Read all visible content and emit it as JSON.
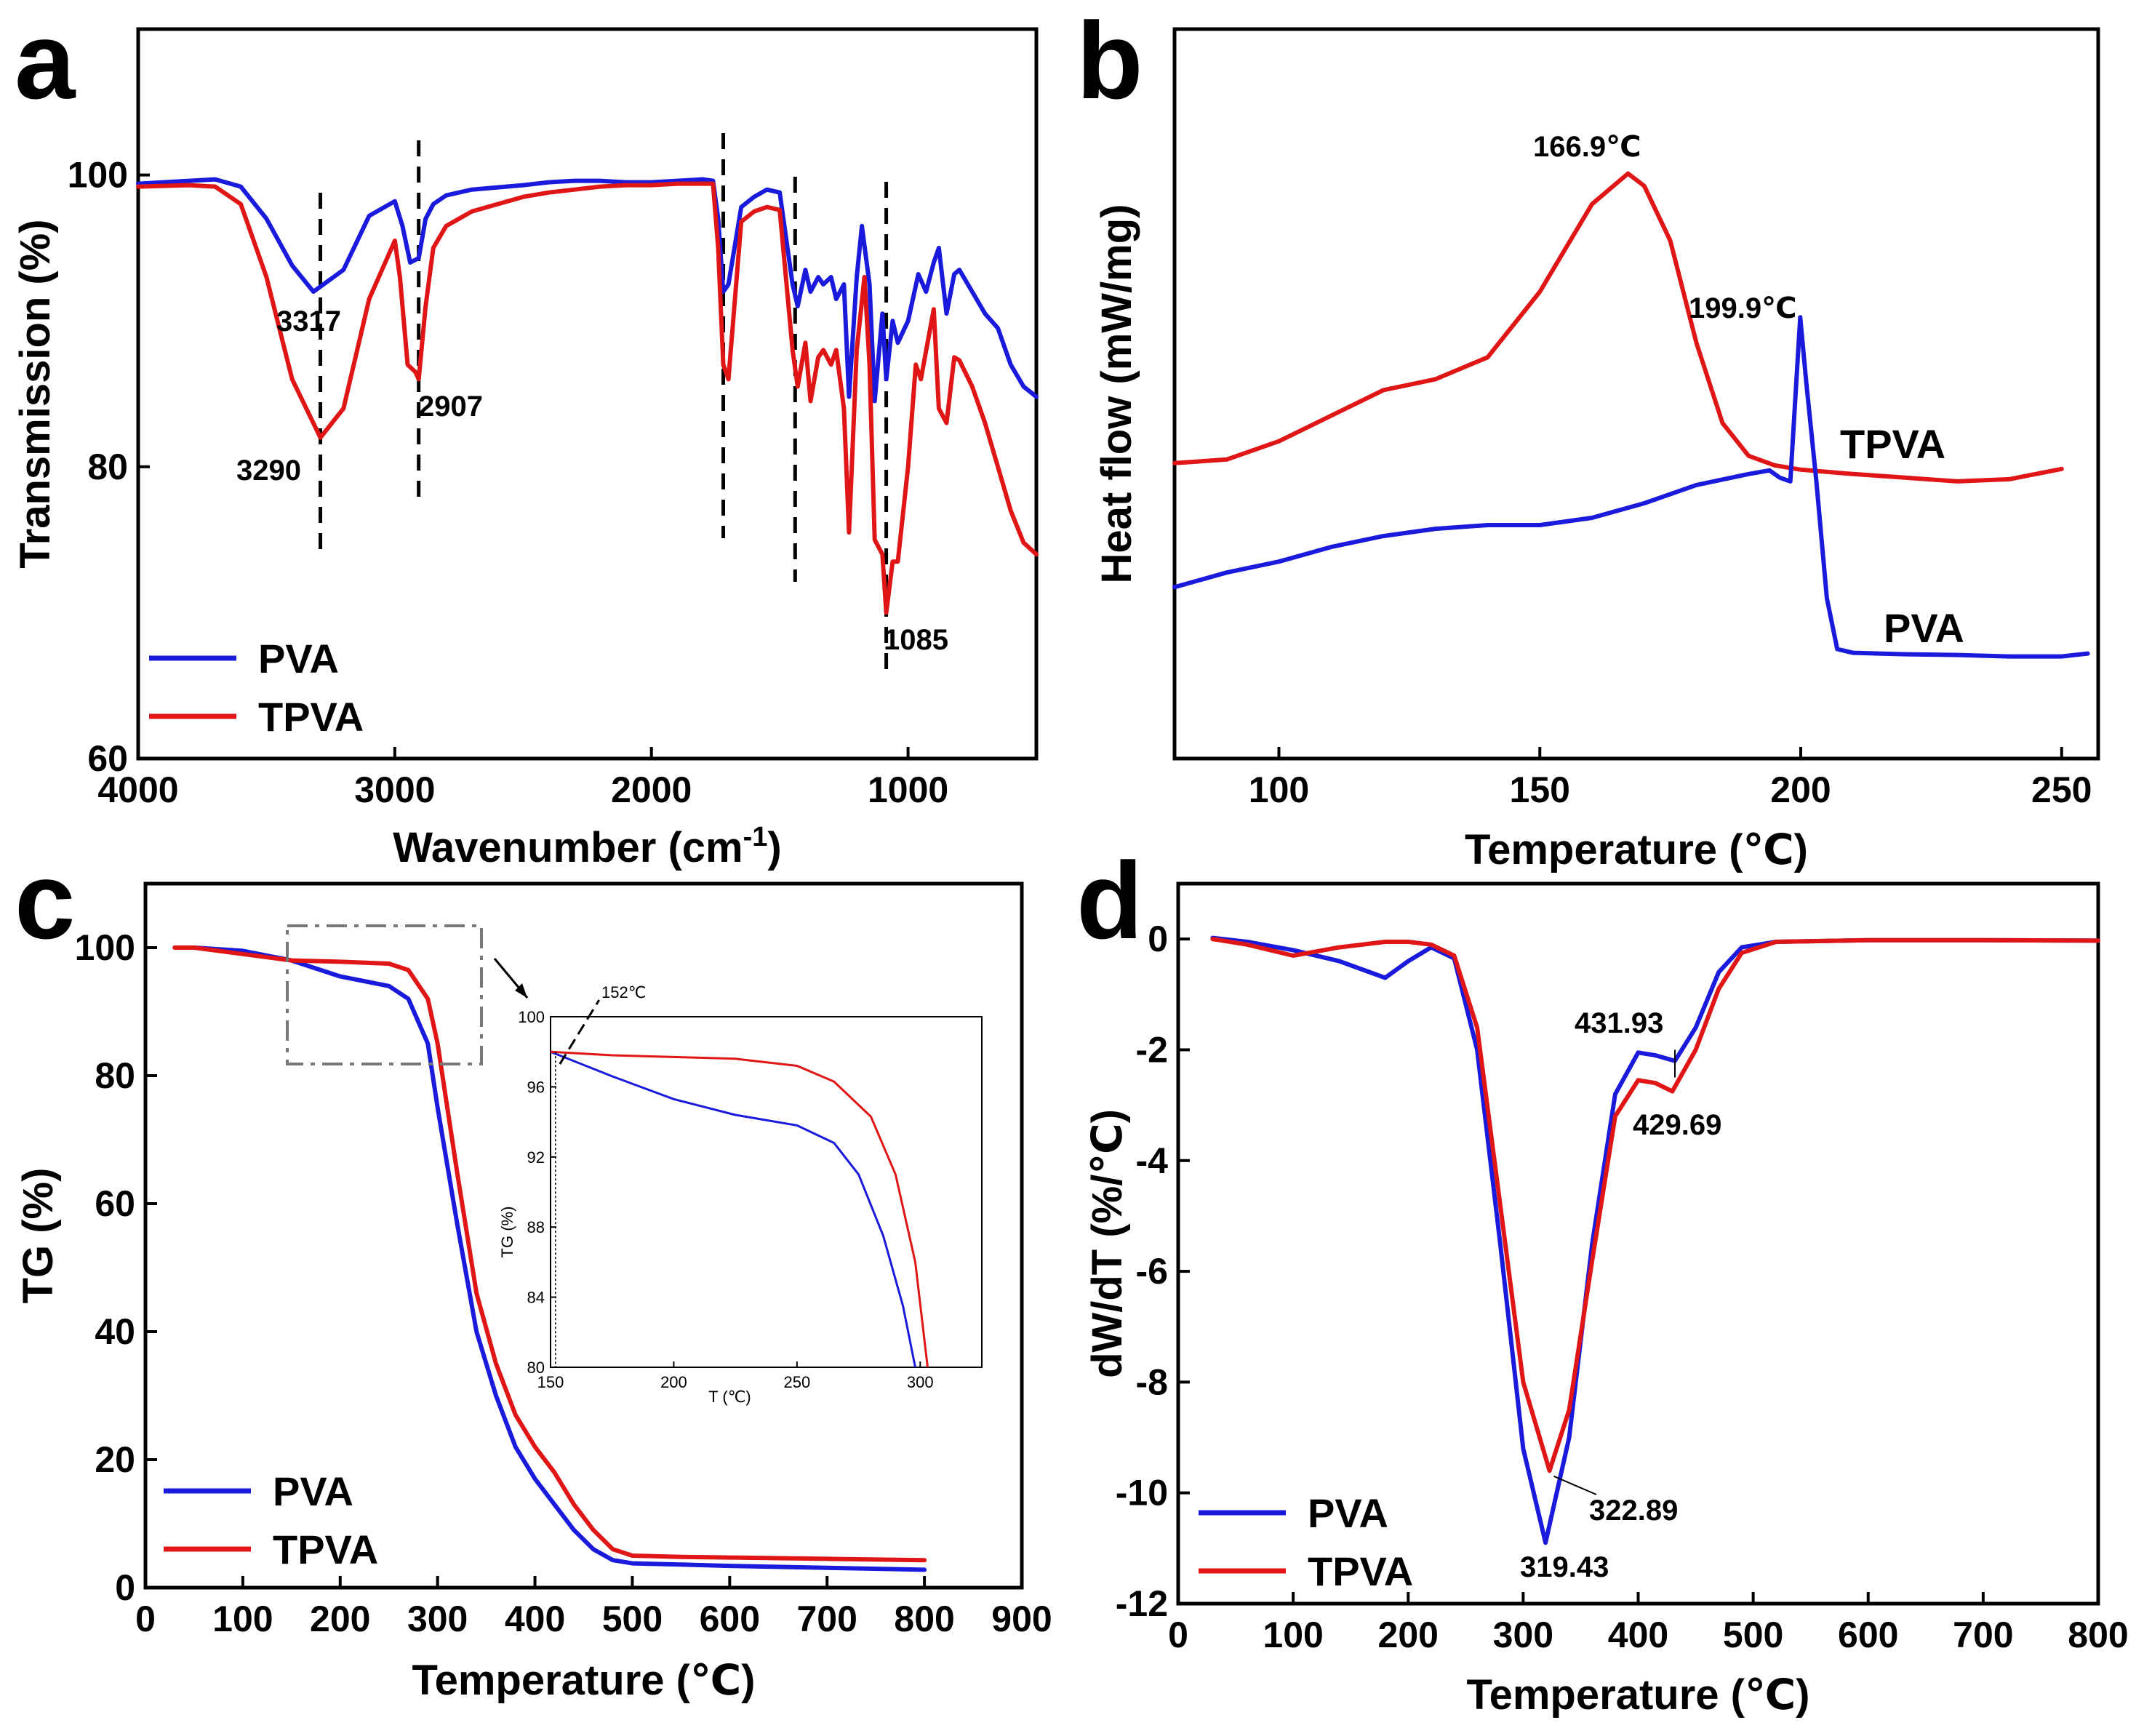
{
  "colors": {
    "PVA": "#1a1adc",
    "TPVA": "#e01616"
  },
  "chart_data": [
    {
      "id": "a",
      "panel_letter": "a",
      "type": "line",
      "xlabel_main": "Wavenumber (cm",
      "xlabel_sup": "-1",
      "xlabel_close": ")",
      "ylabel": "Transmission (%)",
      "xlim": [
        4000,
        500
      ],
      "ylim": [
        60,
        110
      ],
      "xticks": [
        4000,
        3000,
        2000,
        1000
      ],
      "yticks": [
        60,
        80,
        100
      ],
      "legend_position": "bottom-left",
      "series": [
        {
          "name": "PVA",
          "x": [
            4000,
            3800,
            3700,
            3600,
            3500,
            3400,
            3317,
            3200,
            3100,
            3000,
            2970,
            2940,
            2907,
            2880,
            2850,
            2800,
            2700,
            2500,
            2400,
            2300,
            2200,
            2100,
            2000,
            1900,
            1800,
            1760,
            1740,
            1720,
            1700,
            1650,
            1600,
            1550,
            1500,
            1450,
            1430,
            1400,
            1380,
            1350,
            1330,
            1300,
            1280,
            1250,
            1230,
            1200,
            1180,
            1150,
            1130,
            1100,
            1085,
            1060,
            1040,
            1000,
            960,
            930,
            900,
            880,
            850,
            820,
            800,
            750,
            700,
            650,
            600,
            550,
            500
          ],
          "y": [
            99.4,
            99.6,
            99.7,
            99.2,
            97.0,
            93.8,
            92.0,
            93.5,
            97.2,
            98.2,
            96.5,
            94.0,
            94.3,
            97.0,
            98.0,
            98.6,
            99.0,
            99.3,
            99.5,
            99.6,
            99.6,
            99.5,
            99.5,
            99.6,
            99.7,
            99.6,
            97.0,
            92.0,
            92.5,
            97.8,
            98.5,
            99.0,
            98.8,
            92.5,
            91.0,
            93.5,
            92.0,
            93.0,
            92.5,
            93.0,
            91.5,
            92.5,
            84.8,
            93.0,
            96.5,
            92.5,
            84.5,
            90.5,
            86.0,
            90.0,
            88.5,
            90.0,
            93.2,
            92.0,
            94.0,
            95.0,
            90.5,
            93.2,
            93.5,
            92.0,
            90.5,
            89.5,
            87.0,
            85.5,
            84.8
          ]
        },
        {
          "name": "TPVA",
          "x": [
            4000,
            3800,
            3700,
            3600,
            3500,
            3400,
            3290,
            3200,
            3100,
            3000,
            2980,
            2950,
            2920,
            2907,
            2880,
            2850,
            2800,
            2700,
            2600,
            2500,
            2400,
            2300,
            2200,
            2100,
            2000,
            1900,
            1800,
            1760,
            1740,
            1720,
            1700,
            1650,
            1600,
            1550,
            1500,
            1450,
            1430,
            1400,
            1380,
            1350,
            1330,
            1300,
            1280,
            1250,
            1230,
            1200,
            1170,
            1150,
            1130,
            1100,
            1085,
            1060,
            1040,
            1000,
            970,
            950,
            900,
            880,
            850,
            820,
            800,
            750,
            700,
            650,
            600,
            550,
            500
          ],
          "y": [
            99.2,
            99.3,
            99.2,
            98.0,
            93.0,
            86.0,
            82.0,
            84.0,
            91.5,
            95.5,
            93.0,
            87.0,
            86.5,
            86.0,
            91.0,
            95.0,
            96.5,
            97.5,
            98.0,
            98.5,
            98.8,
            99.0,
            99.2,
            99.3,
            99.3,
            99.4,
            99.4,
            99.4,
            95.0,
            87.0,
            86.0,
            96.8,
            97.5,
            97.8,
            97.6,
            88.0,
            85.5,
            88.5,
            84.5,
            87.5,
            88.0,
            87.0,
            88.0,
            84.0,
            75.5,
            88.0,
            93.0,
            87.0,
            75.0,
            74.0,
            70.0,
            73.5,
            73.5,
            80.0,
            87.0,
            86.0,
            90.8,
            84.0,
            83.0,
            87.5,
            87.3,
            85.5,
            83.0,
            80.0,
            77.0,
            74.8,
            74.0
          ]
        }
      ],
      "guide_lines": [
        3290,
        2907,
        1720,
        1440,
        1085
      ],
      "annotations": [
        "3317",
        "2907",
        "3290",
        "1085"
      ]
    },
    {
      "id": "b",
      "panel_letter": "b",
      "type": "line",
      "xlabel": "Temperature (℃)",
      "ylabel": "Heat flow (mW/mg)",
      "xlim": [
        80,
        257
      ],
      "ylim": [
        0,
        100
      ],
      "xticks": [
        100,
        150,
        200,
        250
      ],
      "yticks": [],
      "series": [
        {
          "name": "TPVA",
          "x": [
            80,
            90,
            100,
            110,
            120,
            130,
            140,
            150,
            155,
            160,
            166.9,
            170,
            175,
            180,
            185,
            190,
            195,
            200,
            210,
            220,
            230,
            240,
            250
          ],
          "y": [
            40.5,
            41.0,
            43.5,
            47.0,
            50.5,
            52.0,
            55.0,
            64.0,
            70.0,
            76.0,
            80.2,
            78.5,
            71.0,
            57.0,
            46.0,
            41.5,
            40.2,
            39.6,
            39.0,
            38.5,
            38.0,
            38.3,
            39.7
          ]
        },
        {
          "name": "PVA",
          "x": [
            80,
            90,
            100,
            110,
            120,
            130,
            140,
            150,
            160,
            170,
            180,
            190,
            194,
            196,
            198,
            199.9,
            201,
            203,
            205,
            207,
            210,
            220,
            230,
            240,
            250,
            255
          ],
          "y": [
            23.5,
            25.5,
            27.0,
            29.0,
            30.5,
            31.5,
            32.0,
            32.0,
            33.0,
            35.0,
            37.5,
            39.0,
            39.5,
            38.5,
            38.0,
            60.5,
            52.0,
            38.0,
            22.0,
            15.0,
            14.5,
            14.3,
            14.2,
            14.0,
            14.0,
            14.4
          ]
        }
      ],
      "series_labels": [
        "TPVA",
        "PVA"
      ],
      "annotations": [
        "166.9℃",
        "199.9℃"
      ]
    },
    {
      "id": "c",
      "panel_letter": "c",
      "type": "line",
      "xlabel": "Temperature (℃)",
      "ylabel": "TG (%)",
      "xlim": [
        0,
        900
      ],
      "ylim": [
        0,
        110
      ],
      "xticks": [
        0,
        100,
        200,
        300,
        400,
        500,
        600,
        700,
        800,
        900
      ],
      "yticks": [
        0,
        20,
        40,
        60,
        80,
        100
      ],
      "legend_position": "bottom-left",
      "series": [
        {
          "name": "PVA",
          "x": [
            30,
            50,
            100,
            150,
            200,
            250,
            270,
            290,
            300,
            320,
            340,
            360,
            380,
            400,
            420,
            440,
            460,
            480,
            500,
            550,
            600,
            700,
            800
          ],
          "y": [
            100,
            100,
            99.5,
            98,
            95.5,
            94,
            92,
            85,
            75,
            57,
            40,
            30,
            22,
            17,
            13,
            9,
            6,
            4.3,
            3.8,
            3.6,
            3.4,
            3.1,
            2.8
          ]
        },
        {
          "name": "TPVA",
          "x": [
            30,
            50,
            100,
            150,
            200,
            250,
            270,
            290,
            300,
            320,
            340,
            360,
            380,
            400,
            420,
            440,
            460,
            480,
            500,
            550,
            600,
            700,
            800
          ],
          "y": [
            100,
            100,
            99,
            98,
            97.8,
            97.5,
            96.5,
            92,
            85,
            65,
            46,
            35,
            27,
            22,
            18,
            13,
            9,
            6,
            5.0,
            4.8,
            4.7,
            4.5,
            4.3
          ]
        }
      ],
      "inset": {
        "xlabel": "T (℃)",
        "ylabel": "TG (%)",
        "xlim": [
          150,
          325
        ],
        "ylim": [
          80,
          100
        ],
        "xticks": [
          150,
          200,
          250,
          300
        ],
        "yticks": [
          80,
          84,
          88,
          92,
          96,
          100
        ],
        "annotation": "152℃",
        "series": [
          {
            "name": "PVA",
            "x": [
              150,
              175,
              200,
              225,
              250,
              265,
              275,
              285,
              293,
              298
            ],
            "y": [
              98,
              96.6,
              95.3,
              94.4,
              93.8,
              92.8,
              91,
              87.5,
              83.5,
              80
            ]
          },
          {
            "name": "TPVA",
            "x": [
              150,
              175,
              200,
              225,
              250,
              265,
              280,
              290,
              298,
              303
            ],
            "y": [
              98,
              97.8,
              97.7,
              97.6,
              97.2,
              96.3,
              94.3,
              91,
              86,
              80
            ]
          }
        ]
      }
    },
    {
      "id": "d",
      "panel_letter": "d",
      "type": "line",
      "xlabel": "Temperature (℃)",
      "ylabel": "dW/dT (%/℃)",
      "xlim": [
        0,
        800
      ],
      "ylim": [
        -12,
        1
      ],
      "xticks": [
        0,
        100,
        200,
        300,
        400,
        500,
        600,
        700,
        800
      ],
      "yticks": [
        -12,
        -10,
        -8,
        -6,
        -4,
        -2,
        0
      ],
      "legend_position": "bottom-left",
      "series": [
        {
          "name": "PVA",
          "x": [
            30,
            60,
            100,
            140,
            160,
            180,
            200,
            220,
            240,
            260,
            280,
            300,
            319.43,
            340,
            360,
            380,
            400,
            415,
            431.93,
            450,
            470,
            490,
            520,
            600,
            700,
            800
          ],
          "y": [
            0.02,
            -0.05,
            -0.2,
            -0.4,
            -0.55,
            -0.7,
            -0.4,
            -0.15,
            -0.35,
            -2.0,
            -5.5,
            -9.2,
            -10.9,
            -9.0,
            -5.5,
            -2.8,
            -2.05,
            -2.1,
            -2.2,
            -1.6,
            -0.6,
            -0.15,
            -0.05,
            -0.02,
            -0.02,
            -0.03
          ]
        },
        {
          "name": "TPVA",
          "x": [
            30,
            60,
            100,
            140,
            180,
            200,
            220,
            240,
            260,
            280,
            300,
            322.89,
            340,
            360,
            380,
            400,
            415,
            429.69,
            450,
            470,
            490,
            520,
            600,
            700,
            800
          ],
          "y": [
            0.0,
            -0.1,
            -0.3,
            -0.15,
            -0.05,
            -0.05,
            -0.1,
            -0.3,
            -1.6,
            -4.8,
            -8.0,
            -9.6,
            -8.5,
            -5.8,
            -3.2,
            -2.55,
            -2.6,
            -2.75,
            -2.0,
            -0.9,
            -0.25,
            -0.05,
            -0.02,
            -0.02,
            -0.03
          ]
        }
      ],
      "annotations": [
        "431.93",
        "429.69",
        "322.89",
        "319.43"
      ]
    }
  ]
}
